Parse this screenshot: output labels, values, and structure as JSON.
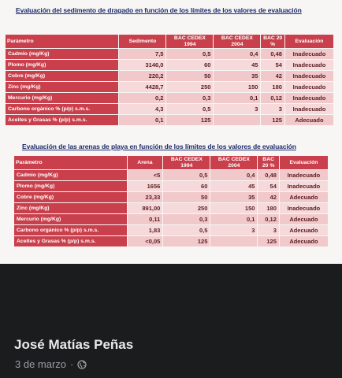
{
  "table1": {
    "title": "Evaluación del sedimento de dragado en función de los límites de los valores de evaluación",
    "headers": [
      "Parámetro",
      "Sedimento",
      "BAC CEDEX 1994",
      "BAC CEDEX 2004",
      "BAC 20 %",
      "Evaluación"
    ],
    "rows": [
      [
        "Cadmio (mg/Kg)",
        "7,5",
        "0,5",
        "0,4",
        "0,48",
        "Inadecuado"
      ],
      [
        "Plomo (mg/Kg)",
        "3146,0",
        "60",
        "45",
        "54",
        "Inadecuado"
      ],
      [
        "Cobre (mg/Kg)",
        "220,2",
        "50",
        "35",
        "42",
        "Inadecuado"
      ],
      [
        "Zinc (mg/Kg)",
        "4428,7",
        "250",
        "150",
        "180",
        "Inadecuado"
      ],
      [
        "Mercurio (mg/Kg)",
        "0,2",
        "0,3",
        "0,1",
        "0,12",
        "Inadecuado"
      ],
      [
        "Carbono orgánico % (p/p) s.m.s.",
        "4,3",
        "0,5",
        "3",
        "3",
        "Inadecuado"
      ],
      [
        "Aceites y Grasas % (p/p) s.m.s.",
        "0,1",
        "125",
        "",
        "125",
        "Adecuado"
      ]
    ]
  },
  "table2": {
    "title": "Evaluación de las arenas de playa en función de los límites de los valores de evaluación",
    "headers": [
      "Parámetro",
      "Arena",
      "BAC CEDEX 1994",
      "BAC CEDEX 2004",
      "BAC 20 %",
      "Evaluación"
    ],
    "rows": [
      [
        "Cadmio (mg/Kg)",
        "<5",
        "0,5",
        "0,4",
        "0,48",
        "Inadecuado"
      ],
      [
        "Plomo (mg/Kg)",
        "1656",
        "60",
        "45",
        "54",
        "Inadecuado"
      ],
      [
        "Cobre (mg/Kg)",
        "23,33",
        "50",
        "35",
        "42",
        "Adecuado"
      ],
      [
        "Zinc (mg/Kg)",
        "891,00",
        "250",
        "150",
        "180",
        "Inadecuado"
      ],
      [
        "Mercurio (mg/Kg)",
        "0,11",
        "0,3",
        "0,1",
        "0,12",
        "Adecuado"
      ],
      [
        "Carbono orgánico % (p/p) s.m.s.",
        "1,83",
        "0,5",
        "3",
        "3",
        "Adecuado"
      ],
      [
        "Aceites y Grasas % (p/p) s.m.s.",
        "<0,05",
        "125",
        "",
        "125",
        "Adecuado"
      ]
    ]
  },
  "post": {
    "author": "José Matías Peñas",
    "date": "3 de marzo",
    "separator": "·",
    "privacy_icon": "globe-icon"
  },
  "colors": {
    "header_bg": "#c9404c",
    "cell_bg": "#f2c9cb",
    "title_color": "#1d2a6b",
    "page_bg": "#1b1c1e"
  }
}
